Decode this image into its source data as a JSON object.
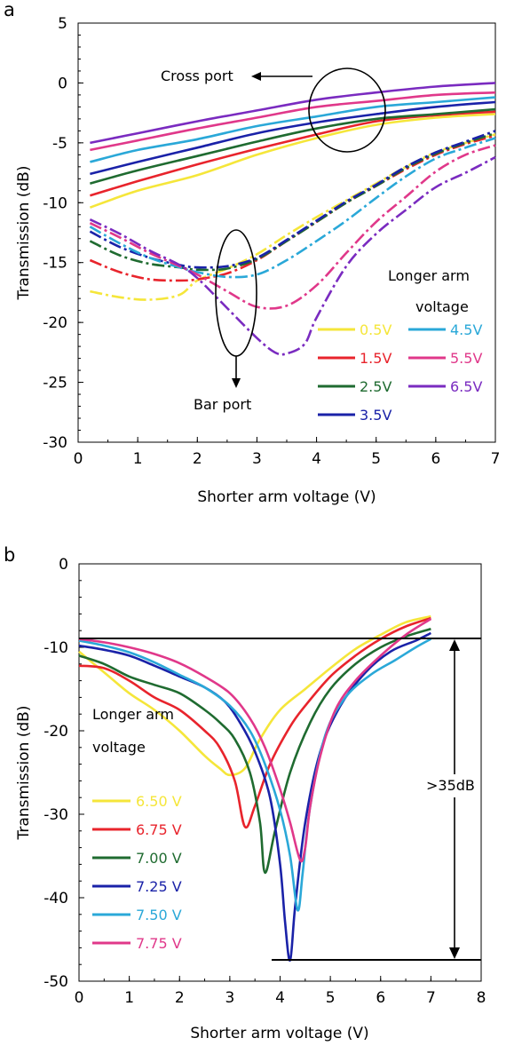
{
  "chart_data": [
    {
      "panel": "a",
      "type": "line",
      "xlabel": "Shorter arm voltage (V)",
      "ylabel": "Transmission (dB)",
      "xlim": [
        0,
        7
      ],
      "ylim": [
        -30,
        5
      ],
      "xticks": [
        "0",
        "1",
        "2",
        "3",
        "4",
        "5",
        "6",
        "7"
      ],
      "yticks": [
        "5",
        "0",
        "-5",
        "-10",
        "-15",
        "-20",
        "-25",
        "-30"
      ],
      "legend_title": [
        "Longer arm",
        "voltage"
      ],
      "annotations": [
        "Cross port",
        "Bar port"
      ],
      "series": [
        {
          "name": "0.5V",
          "color": "#f5e63a",
          "port": "cross",
          "x": [
            0.2,
            1,
            2,
            3,
            4,
            5,
            6,
            7
          ],
          "y": [
            -10.4,
            -9,
            -7.7,
            -6.0,
            -4.6,
            -3.5,
            -2.9,
            -2.6
          ]
        },
        {
          "name": "1.5V",
          "color": "#e8242c",
          "port": "cross",
          "x": [
            0.2,
            1,
            2,
            3,
            4,
            5,
            6,
            7
          ],
          "y": [
            -9.4,
            -8.2,
            -6.8,
            -5.5,
            -4.3,
            -3.2,
            -2.7,
            -2.4
          ]
        },
        {
          "name": "2.5V",
          "color": "#1f6b30",
          "port": "cross",
          "x": [
            0.2,
            1,
            2,
            3,
            4,
            5,
            6,
            7
          ],
          "y": [
            -8.4,
            -7.3,
            -6.1,
            -4.9,
            -3.8,
            -3.0,
            -2.6,
            -2.2
          ]
        },
        {
          "name": "3.5V",
          "color": "#1a22a8",
          "port": "cross",
          "x": [
            0.2,
            1,
            2,
            3,
            4,
            5,
            6,
            7
          ],
          "y": [
            -7.6,
            -6.6,
            -5.4,
            -4.2,
            -3.3,
            -2.6,
            -2.0,
            -1.6
          ]
        },
        {
          "name": "4.5V",
          "color": "#2aa8d8",
          "port": "cross",
          "x": [
            0.2,
            1,
            2,
            3,
            4,
            5,
            6,
            7
          ],
          "y": [
            -6.6,
            -5.6,
            -4.7,
            -3.6,
            -2.8,
            -2.0,
            -1.6,
            -1.2
          ]
        },
        {
          "name": "5.5V",
          "color": "#e0388a",
          "port": "cross",
          "x": [
            0.2,
            1,
            2,
            3,
            4,
            5,
            6,
            7
          ],
          "y": [
            -5.6,
            -4.8,
            -3.8,
            -2.9,
            -2.0,
            -1.5,
            -1.0,
            -0.8
          ]
        },
        {
          "name": "6.5V",
          "color": "#7a2bc0",
          "port": "cross",
          "x": [
            0.2,
            1,
            2,
            3,
            4,
            5,
            6,
            7
          ],
          "y": [
            -5.0,
            -4.2,
            -3.2,
            -2.3,
            -1.4,
            -0.8,
            -0.3,
            0.0
          ]
        },
        {
          "name": "0.5V",
          "color": "#f5e63a",
          "port": "bar",
          "x": [
            0.2,
            0.7,
            1.2,
            1.7,
            2.0,
            2.5,
            3.0,
            3.5,
            4.0,
            4.5,
            5.0,
            5.5,
            6.0,
            6.5,
            7.0
          ],
          "y": [
            -17.4,
            -17.9,
            -18.1,
            -17.7,
            -16.5,
            -15.5,
            -14.3,
            -12.7,
            -11.2,
            -9.8,
            -8.4,
            -7.0,
            -5.8,
            -5.0,
            -4.3
          ]
        },
        {
          "name": "1.5V",
          "color": "#e8242c",
          "port": "bar",
          "x": [
            0.2,
            0.7,
            1.2,
            1.7,
            2.0,
            2.5,
            3.0,
            3.5,
            4.0,
            4.5,
            5.0,
            5.5,
            6.0,
            6.5,
            7.0
          ],
          "y": [
            -14.8,
            -15.8,
            -16.4,
            -16.5,
            -16.4,
            -15.9,
            -14.8,
            -13.2,
            -11.6,
            -10.0,
            -8.6,
            -7.2,
            -6.0,
            -5.1,
            -4.4
          ]
        },
        {
          "name": "2.5V",
          "color": "#1f6b30",
          "port": "bar",
          "x": [
            0.2,
            0.7,
            1.2,
            1.7,
            2.0,
            2.5,
            3.0,
            3.5,
            4.0,
            4.5,
            5.0,
            5.5,
            6.0,
            6.5,
            7.0
          ],
          "y": [
            -13.2,
            -14.4,
            -15.1,
            -15.4,
            -15.6,
            -15.5,
            -14.7,
            -13.2,
            -11.6,
            -10.0,
            -8.6,
            -7.1,
            -5.9,
            -5.0,
            -4.2
          ]
        },
        {
          "name": "3.5V",
          "color": "#1a22a8",
          "port": "bar",
          "x": [
            0.2,
            0.7,
            1.2,
            1.7,
            2.0,
            2.5,
            3.0,
            3.5,
            4.0,
            4.5,
            5.0,
            5.5,
            6.0,
            6.5,
            7.0
          ],
          "y": [
            -12.4,
            -13.7,
            -14.6,
            -15.2,
            -15.4,
            -15.3,
            -14.6,
            -13.1,
            -11.5,
            -9.9,
            -8.5,
            -7.0,
            -5.8,
            -4.9,
            -4.0
          ]
        },
        {
          "name": "4.5V",
          "color": "#2aa8d8",
          "port": "bar",
          "x": [
            0.2,
            0.7,
            1.2,
            1.7,
            2.0,
            2.5,
            3.0,
            3.5,
            4.0,
            4.5,
            5.0,
            5.5,
            6.0,
            6.5,
            7.0
          ],
          "y": [
            -12.0,
            -13.4,
            -14.6,
            -15.4,
            -15.8,
            -16.2,
            -16.0,
            -14.8,
            -13.2,
            -11.5,
            -9.6,
            -7.8,
            -6.3,
            -5.4,
            -4.6
          ]
        },
        {
          "name": "5.5V",
          "color": "#e0388a",
          "port": "bar",
          "x": [
            0.2,
            0.7,
            1.2,
            1.7,
            2.0,
            2.5,
            3.0,
            3.5,
            4.0,
            4.5,
            5.0,
            5.5,
            6.0,
            6.5,
            7.0
          ],
          "y": [
            -11.7,
            -12.9,
            -14.2,
            -15.3,
            -16.0,
            -17.4,
            -18.7,
            -18.6,
            -16.9,
            -14.2,
            -11.6,
            -9.5,
            -7.4,
            -6.0,
            -5.2
          ]
        },
        {
          "name": "6.5V",
          "color": "#7a2bc0",
          "port": "bar",
          "x": [
            0.2,
            0.7,
            1.2,
            1.7,
            2.0,
            2.5,
            3.0,
            3.3,
            3.5,
            3.8,
            4.0,
            4.5,
            5.0,
            5.5,
            6.0,
            6.5,
            7.0
          ],
          "y": [
            -11.4,
            -12.6,
            -14.0,
            -15.2,
            -16.3,
            -18.8,
            -21.3,
            -22.5,
            -22.6,
            -21.8,
            -19.6,
            -15.3,
            -12.6,
            -10.6,
            -8.7,
            -7.5,
            -6.2
          ]
        }
      ]
    },
    {
      "panel": "b",
      "type": "line",
      "xlabel": "Shorter arm voltage (V)",
      "ylabel": "Transmission (dB)",
      "xlim": [
        0,
        8
      ],
      "ylim": [
        -50,
        0
      ],
      "xticks": [
        "0",
        "1",
        "2",
        "3",
        "4",
        "5",
        "6",
        "7",
        "8"
      ],
      "yticks": [
        "0",
        "-10",
        "-20",
        "-30",
        "-40",
        "-50"
      ],
      "legend_title": [
        "Longer arm",
        "voltage"
      ],
      "annotations": [
        ">35dB"
      ],
      "series": [
        {
          "name": "6.50 V",
          "color": "#f5e63a",
          "x": [
            0,
            0.5,
            1,
            1.5,
            2,
            2.5,
            2.8,
            3.0,
            3.3,
            3.6,
            4.0,
            4.5,
            5,
            5.5,
            6,
            6.5,
            7
          ],
          "y": [
            -10.5,
            -13,
            -15.5,
            -17.5,
            -20,
            -23,
            -24.5,
            -25.3,
            -24.5,
            -21,
            -17.5,
            -15,
            -12.5,
            -10.2,
            -8.5,
            -7,
            -6.3
          ]
        },
        {
          "name": "6.75 V",
          "color": "#e8242c",
          "x": [
            0,
            0.5,
            1,
            1.5,
            2,
            2.5,
            2.8,
            3.1,
            3.3,
            3.5,
            3.8,
            4.2,
            4.5,
            5,
            5.5,
            6,
            6.5,
            7
          ],
          "y": [
            -12.2,
            -12.5,
            -14,
            -16,
            -17.5,
            -20,
            -22,
            -26,
            -31.5,
            -29,
            -24,
            -19.5,
            -17,
            -13.5,
            -11,
            -9,
            -7.5,
            -6.5
          ]
        },
        {
          "name": "7.00 V",
          "color": "#1f6b30",
          "x": [
            0,
            0.5,
            1,
            1.5,
            2,
            2.5,
            2.8,
            3.1,
            3.4,
            3.6,
            3.7,
            3.9,
            4.2,
            4.6,
            5,
            5.5,
            6,
            6.5,
            7
          ],
          "y": [
            -11,
            -12,
            -13.5,
            -14.5,
            -15.5,
            -17.5,
            -19,
            -21,
            -25,
            -31,
            -37,
            -32,
            -25,
            -19,
            -15,
            -12,
            -10,
            -8.7,
            -7.8
          ]
        },
        {
          "name": "7.25 V",
          "color": "#1a22a8",
          "x": [
            0,
            0.5,
            1,
            1.5,
            2,
            2.5,
            2.9,
            3.2,
            3.5,
            3.8,
            4.0,
            4.1,
            4.2,
            4.3,
            4.5,
            4.8,
            5.2,
            5.7,
            6.2,
            6.7,
            7
          ],
          "y": [
            -9.8,
            -10.3,
            -11,
            -12.2,
            -13.5,
            -14.8,
            -16.5,
            -19,
            -22.5,
            -28,
            -36,
            -43,
            -47.5,
            -41,
            -31,
            -22.5,
            -17,
            -13,
            -10.5,
            -9.2,
            -8.3
          ]
        },
        {
          "name": "7.50 V",
          "color": "#2aa8d8",
          "x": [
            0,
            0.5,
            1,
            1.5,
            2,
            2.5,
            3,
            3.4,
            3.7,
            4.0,
            4.2,
            4.35,
            4.45,
            4.6,
            4.9,
            5.3,
            5.8,
            6.3,
            6.7,
            7
          ],
          "y": [
            -9.2,
            -9.8,
            -10.6,
            -11.8,
            -13.3,
            -14.8,
            -17,
            -20,
            -24,
            -29.5,
            -35,
            -41.5,
            -37,
            -29,
            -20.5,
            -16,
            -13.3,
            -11.5,
            -10,
            -9
          ]
        },
        {
          "name": "7.75 V",
          "color": "#e0388a",
          "x": [
            0,
            0.5,
            1,
            1.5,
            2,
            2.5,
            3,
            3.4,
            3.7,
            4.0,
            4.2,
            4.4,
            4.5,
            4.6,
            4.8,
            5.1,
            5.5,
            6,
            6.5,
            7
          ],
          "y": [
            -9,
            -9.4,
            -10,
            -10.8,
            -11.9,
            -13.5,
            -15.5,
            -18.5,
            -22,
            -27,
            -31,
            -35.5,
            -34,
            -29,
            -23,
            -17.5,
            -14,
            -11,
            -8.5,
            -6.6
          ]
        }
      ]
    }
  ]
}
